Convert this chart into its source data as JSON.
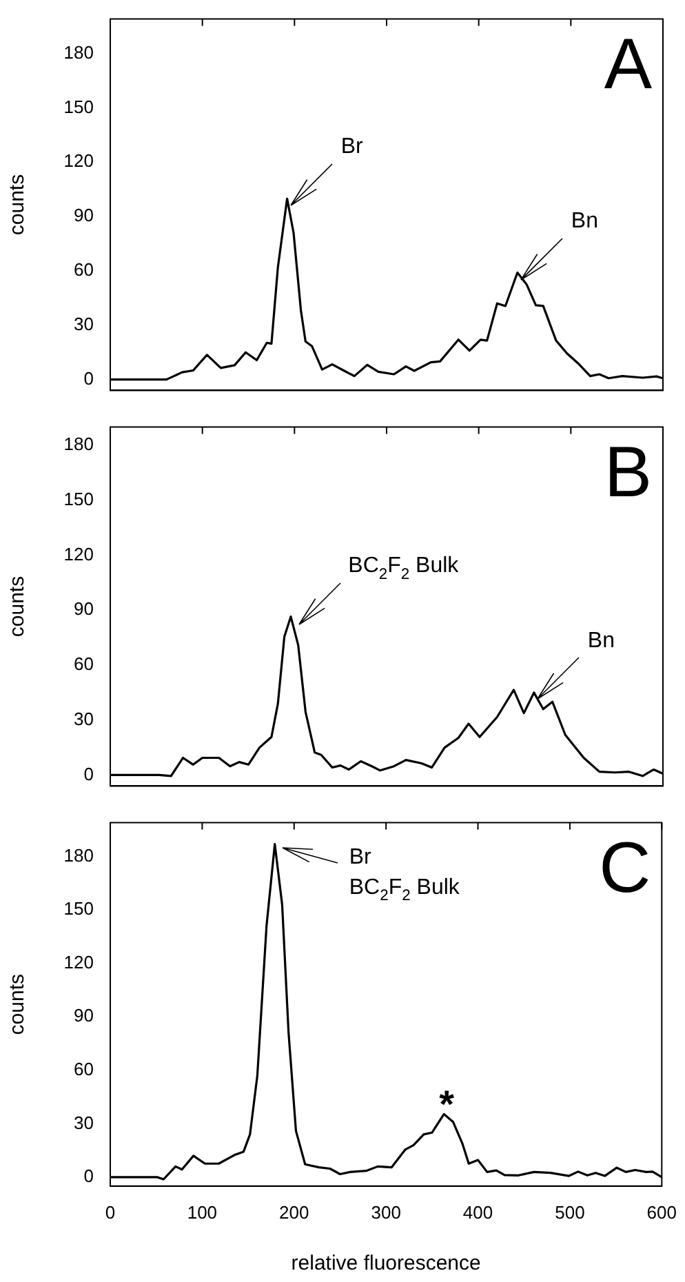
{
  "chart_data": [
    {
      "type": "line",
      "ylabel": "counts",
      "xlim": [
        0,
        600
      ],
      "xticks": [
        0,
        100,
        200,
        300,
        400,
        500,
        600
      ],
      "ylim": [
        -6,
        199
      ],
      "yticks": [
        0,
        30,
        60,
        90,
        120,
        150,
        180
      ],
      "tick_labels": "y",
      "grid": false,
      "legend": false,
      "marker": "none",
      "line_style": "solid",
      "annotations": [
        "A",
        {
          "text": "Br",
          "x": 192,
          "y": 100
        },
        {
          "text": "Bn",
          "x": 442,
          "y": 59
        }
      ],
      "series": [
        {
          "color": "#000000",
          "x": [
            0,
            61,
            78,
            90,
            105,
            120,
            135,
            147,
            159,
            170,
            175,
            182,
            192,
            199,
            207,
            212,
            219,
            230,
            241,
            254,
            265,
            279,
            291,
            308,
            321,
            330,
            348,
            358,
            378,
            390,
            402,
            409,
            420,
            429,
            442,
            452,
            462,
            470,
            484,
            496,
            509,
            521,
            531,
            541,
            556,
            578,
            593,
            600
          ],
          "values": [
            0,
            0,
            4,
            5,
            13.6,
            6.4,
            7.9,
            15,
            10.7,
            20.3,
            19.8,
            62,
            99.8,
            81,
            38,
            21,
            18.4,
            5.5,
            8.4,
            4.8,
            1.9,
            8.1,
            4.3,
            2.9,
            7.2,
            4.8,
            9.5,
            10,
            22,
            16,
            22,
            21.5,
            42,
            40.6,
            59,
            52.5,
            41,
            40.6,
            21.5,
            14.3,
            8.4,
            1.9,
            2.9,
            0.7,
            1.9,
            1,
            1.7,
            0.7
          ]
        }
      ]
    },
    {
      "type": "line",
      "ylabel": "counts",
      "xlim": [
        0,
        600
      ],
      "xticks": [
        0,
        100,
        200,
        300,
        400,
        500,
        600
      ],
      "ylim": [
        -6,
        190
      ],
      "yticks": [
        0,
        30,
        60,
        90,
        120,
        150,
        180
      ],
      "tick_labels": "y",
      "grid": false,
      "legend": false,
      "marker": "none",
      "line_style": "solid",
      "annotations": [
        "B",
        {
          "text": "BC$_{2}$F$_{2}$ Bulk",
          "x": 200,
          "y": 86
        },
        {
          "text": "Bn",
          "x": 460,
          "y": 45
        }
      ],
      "series": [
        {
          "color": "#000000",
          "x": [
            0,
            53,
            66,
            79,
            90,
            100,
            118,
            130,
            140,
            150,
            162,
            175,
            182,
            189,
            196,
            204,
            212,
            222,
            229,
            241,
            250,
            259,
            272,
            284,
            293,
            308,
            321,
            338,
            349,
            363,
            378,
            389,
            401,
            420,
            438,
            449,
            460,
            470,
            480,
            494,
            514,
            531,
            548,
            563,
            578,
            590,
            600
          ],
          "values": [
            0,
            0,
            -0.5,
            9.4,
            5.7,
            9.4,
            9.4,
            4.8,
            7.1,
            5.7,
            15,
            20.8,
            39,
            75.5,
            86.5,
            71,
            34.5,
            12.3,
            11,
            4.1,
            5.2,
            3,
            7.5,
            4.8,
            2.5,
            4.8,
            8.2,
            6.4,
            4.1,
            15,
            20.3,
            28,
            20.8,
            31.7,
            46.5,
            33.8,
            45,
            36,
            40,
            21.9,
            9.4,
            1.8,
            1.4,
            1.8,
            -0.5,
            3,
            0.7
          ]
        }
      ]
    },
    {
      "type": "line",
      "xlabel": "relative fluorescence",
      "ylabel": "counts",
      "xlim": [
        0,
        600
      ],
      "xticks": [
        0,
        100,
        200,
        300,
        400,
        500,
        600
      ],
      "ylim": [
        -5,
        199
      ],
      "yticks": [
        0,
        30,
        60,
        90,
        120,
        150,
        180
      ],
      "grid": false,
      "legend": false,
      "marker": "none",
      "line_style": "solid",
      "annotations": [
        "C",
        {
          "text": "Br",
          "x": 179,
          "y": 187
        },
        {
          "text": "BC$_{2}$F$_{2}$ Bulk",
          "x": 179,
          "y": 187
        },
        {
          "text": "*",
          "x": 363,
          "y": 35
        }
      ],
      "series": [
        {
          "color": "#000000",
          "x": [
            0,
            51,
            58,
            71,
            78,
            90.5,
            103,
            118,
            135,
            145,
            152,
            160,
            170,
            179,
            187,
            194,
            202,
            212,
            227,
            239,
            250,
            261,
            279,
            291,
            306,
            321,
            330,
            341,
            350,
            363,
            373,
            383,
            390,
            400,
            410,
            420,
            429,
            444,
            461,
            479,
            499,
            509,
            519,
            528,
            538,
            551,
            561,
            571,
            583,
            590,
            600
          ],
          "values": [
            0,
            0,
            -1.2,
            6,
            4.3,
            12,
            7.6,
            7.6,
            12.4,
            14.3,
            24,
            57,
            141,
            187,
            153,
            81,
            26,
            7.2,
            5.5,
            4.8,
            1.7,
            2.9,
            3.6,
            6,
            5.5,
            15.5,
            18,
            24,
            25,
            35.4,
            31,
            19,
            7.6,
            9.6,
            2.9,
            3.8,
            1.2,
            1,
            2.9,
            2.4,
            0.7,
            3.1,
            1,
            2.4,
            0.7,
            5.3,
            2.9,
            4,
            2.9,
            3.1,
            0
          ]
        }
      ]
    }
  ]
}
